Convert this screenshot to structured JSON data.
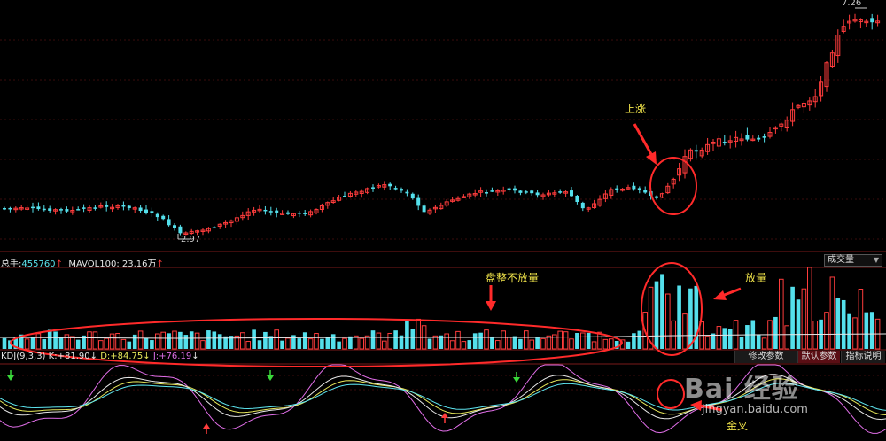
{
  "volume_panel": {
    "total_label": "总手:",
    "total_value": "455760",
    "mavol_label": "MAVOL100:",
    "mavol_value": "23.16万",
    "indicator_select": "成交量"
  },
  "kdj_panel": {
    "title": "KDJ(9,3,3)",
    "k_label": "K:",
    "k_value": "+81.90",
    "d_label": "D:",
    "d_value": "+84.75",
    "j_label": "J:",
    "j_value": "+76.19",
    "btn_params": "修改参数",
    "btn_default": "默认参数",
    "btn_help": "指标说明"
  },
  "annotations": {
    "rise": "上涨",
    "consolidation": "盘整不放量",
    "volume_up": "放量",
    "golden_cross": "金叉"
  },
  "watermark": {
    "logo": "Bai 经验",
    "url": "jingyan.baidu.com"
  },
  "colors": {
    "up": "#ff3c3c",
    "down": "#54e0ec",
    "k_line": "#e8e8e8",
    "d_line": "#e8e85a",
    "j_line": "#e06ee8",
    "annotation": "#f0e34a",
    "marker": "#ff3c3c"
  },
  "chart_data": {
    "type": "candlestick",
    "price_labels": {
      "low": "2.97",
      "high": "7.26"
    },
    "low_price": 2.97,
    "high_price": 7.26
  }
}
